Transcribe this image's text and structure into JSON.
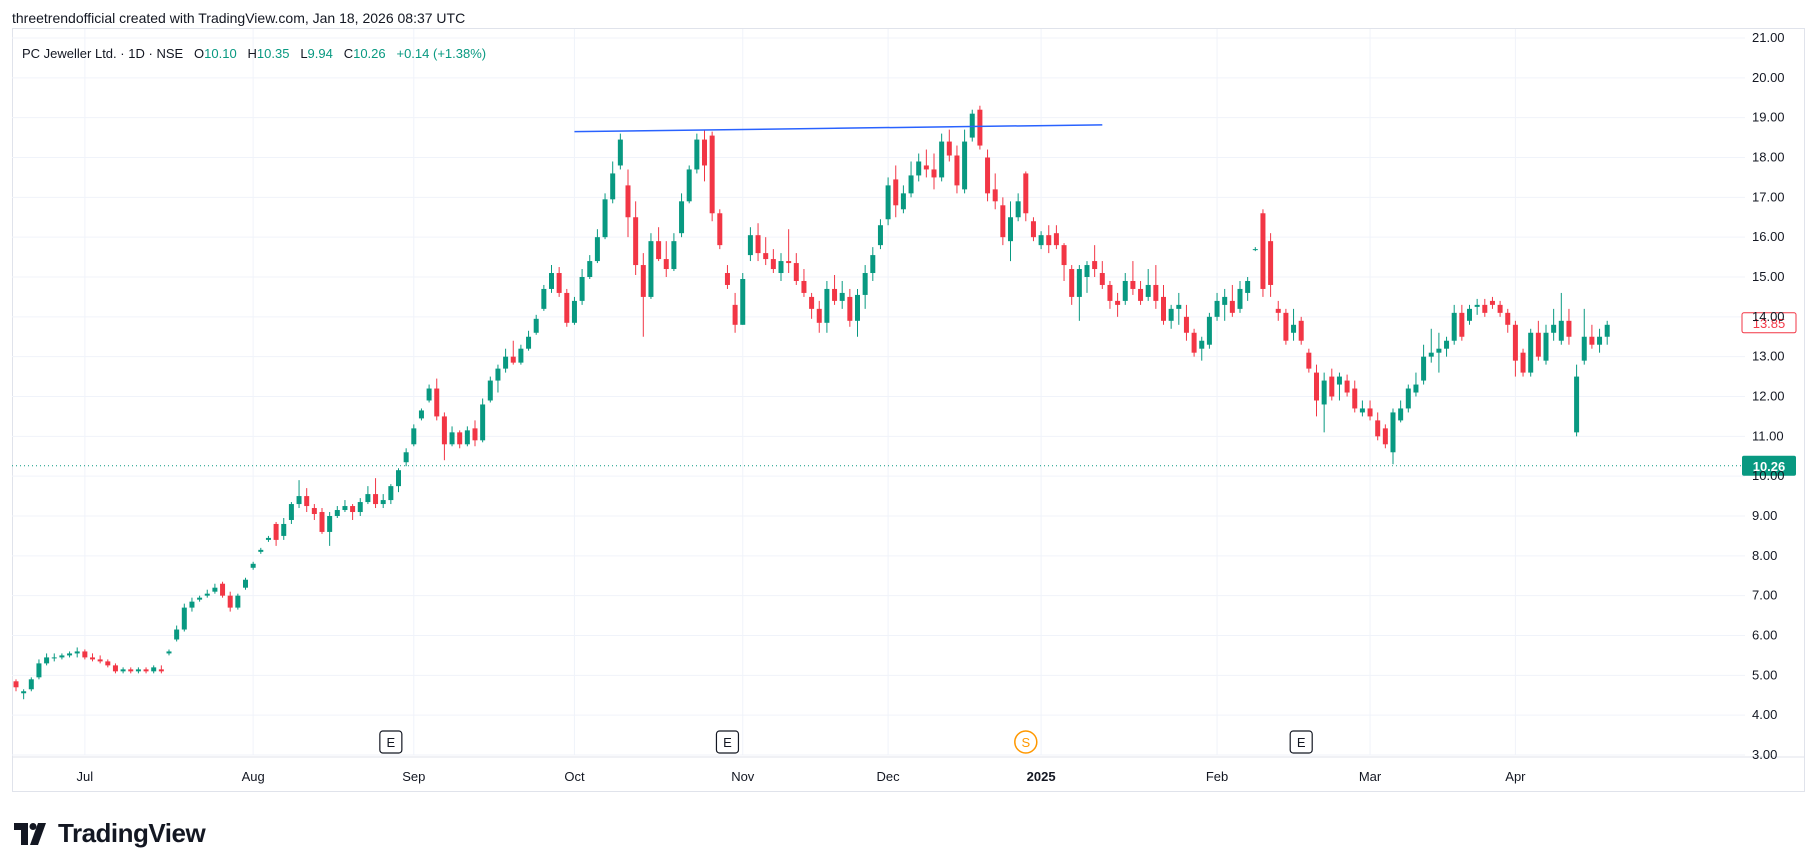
{
  "header": {
    "attribution": "threetrendofficial created with TradingView.com, Jan 18, 2026 08:37 UTC"
  },
  "legend": {
    "symbol": "PC Jeweller Ltd.",
    "interval": "1D",
    "exchange": "NSE",
    "open_label": "O",
    "open": "10.10",
    "high_label": "H",
    "high": "10.35",
    "low_label": "L",
    "low": "9.94",
    "close_label": "C",
    "close": "10.26",
    "change": "+0.14 (+1.38%)"
  },
  "footer": {
    "brand": "TradingView"
  },
  "colors": {
    "up": "#089981",
    "down": "#f23645",
    "trendline": "#2962ff",
    "event": "#131722",
    "split": "#ff9800"
  },
  "chart_data": {
    "type": "candlestick",
    "title": "PC Jeweller Ltd. · 1D · NSE",
    "xlabel": "",
    "ylabel": "",
    "ylim": [
      3,
      21
    ],
    "y_ticks": [
      "3.00",
      "4.00",
      "5.00",
      "6.00",
      "7.00",
      "8.00",
      "9.00",
      "10.00",
      "11.00",
      "12.00",
      "13.00",
      "14.00",
      "15.00",
      "16.00",
      "17.00",
      "18.00",
      "19.00",
      "20.00",
      "21.00"
    ],
    "x_ticks": [
      {
        "label": "Jul",
        "bold": false,
        "bar": 9
      },
      {
        "label": "Aug",
        "bold": false,
        "bar": 31
      },
      {
        "label": "Sep",
        "bold": false,
        "bar": 52
      },
      {
        "label": "Oct",
        "bold": false,
        "bar": 73
      },
      {
        "label": "Nov",
        "bold": false,
        "bar": 95
      },
      {
        "label": "Dec",
        "bold": false,
        "bar": 114
      },
      {
        "label": "2025",
        "bold": true,
        "bar": 134
      },
      {
        "label": "Feb",
        "bold": false,
        "bar": 157
      },
      {
        "label": "Mar",
        "bold": false,
        "bar": 177
      },
      {
        "label": "Apr",
        "bold": false,
        "bar": 196
      }
    ],
    "grid": true,
    "last_price": {
      "value": 10.26,
      "label": "10.26"
    },
    "marker_price": {
      "value": 13.85,
      "label": "13.85"
    },
    "trendline": {
      "from": {
        "bar": 73,
        "price": 18.65
      },
      "to": {
        "bar": 142,
        "price": 18.82
      }
    },
    "events": [
      {
        "type": "earnings",
        "label": "E",
        "bar": 49
      },
      {
        "type": "earnings",
        "label": "E",
        "bar": 93
      },
      {
        "type": "split",
        "label": "S",
        "bar": 132
      },
      {
        "type": "earnings",
        "label": "E",
        "bar": 168
      }
    ],
    "candles": [
      [
        4.85,
        4.9,
        4.6,
        4.7
      ],
      [
        4.55,
        4.65,
        4.4,
        4.6
      ],
      [
        4.65,
        4.95,
        4.6,
        4.9
      ],
      [
        4.95,
        5.4,
        4.9,
        5.3
      ],
      [
        5.3,
        5.55,
        5.25,
        5.45
      ],
      [
        5.45,
        5.55,
        5.35,
        5.45
      ],
      [
        5.45,
        5.55,
        5.4,
        5.5
      ],
      [
        5.5,
        5.6,
        5.45,
        5.55
      ],
      [
        5.55,
        5.7,
        5.45,
        5.6
      ],
      [
        5.6,
        5.65,
        5.4,
        5.45
      ],
      [
        5.45,
        5.55,
        5.35,
        5.4
      ],
      [
        5.4,
        5.5,
        5.3,
        5.35
      ],
      [
        5.35,
        5.4,
        5.2,
        5.25
      ],
      [
        5.25,
        5.3,
        5.05,
        5.1
      ],
      [
        5.1,
        5.2,
        5.05,
        5.15
      ],
      [
        5.15,
        5.2,
        5.05,
        5.1
      ],
      [
        5.1,
        5.2,
        5.05,
        5.15
      ],
      [
        5.15,
        5.2,
        5.05,
        5.1
      ],
      [
        5.1,
        5.25,
        5.05,
        5.2
      ],
      [
        5.15,
        5.25,
        5.05,
        5.1
      ],
      [
        5.55,
        5.65,
        5.5,
        5.6
      ],
      [
        5.9,
        6.25,
        5.85,
        6.15
      ],
      [
        6.15,
        6.8,
        6.1,
        6.7
      ],
      [
        6.7,
        6.95,
        6.6,
        6.85
      ],
      [
        6.9,
        7.0,
        6.85,
        6.95
      ],
      [
        7.0,
        7.15,
        6.95,
        7.05
      ],
      [
        7.1,
        7.3,
        7.05,
        7.2
      ],
      [
        7.3,
        7.35,
        6.95,
        7.0
      ],
      [
        7.0,
        7.1,
        6.6,
        6.7
      ],
      [
        6.7,
        7.05,
        6.65,
        7.0
      ],
      [
        7.2,
        7.45,
        7.15,
        7.4
      ],
      [
        7.7,
        7.85,
        7.65,
        7.8
      ],
      [
        8.1,
        8.2,
        8.05,
        8.15
      ],
      [
        8.4,
        8.5,
        8.35,
        8.45
      ],
      [
        8.8,
        8.85,
        8.25,
        8.4
      ],
      [
        8.5,
        8.95,
        8.4,
        8.8
      ],
      [
        8.9,
        9.35,
        8.8,
        9.3
      ],
      [
        9.3,
        9.9,
        9.2,
        9.5
      ],
      [
        9.5,
        9.7,
        9.1,
        9.25
      ],
      [
        9.2,
        9.3,
        8.9,
        9.05
      ],
      [
        9.1,
        9.2,
        8.55,
        8.6
      ],
      [
        8.6,
        9.1,
        8.25,
        9.0
      ],
      [
        9.0,
        9.25,
        8.95,
        9.15
      ],
      [
        9.15,
        9.4,
        9.1,
        9.25
      ],
      [
        9.25,
        9.3,
        8.9,
        9.1
      ],
      [
        9.1,
        9.45,
        9.0,
        9.35
      ],
      [
        9.35,
        9.75,
        9.3,
        9.55
      ],
      [
        9.55,
        9.95,
        9.2,
        9.3
      ],
      [
        9.3,
        9.55,
        9.2,
        9.4
      ],
      [
        9.4,
        9.8,
        9.3,
        9.75
      ],
      [
        9.75,
        10.2,
        9.6,
        10.15
      ],
      [
        10.35,
        10.7,
        10.25,
        10.6
      ],
      [
        10.8,
        11.3,
        10.75,
        11.2
      ],
      [
        11.45,
        11.7,
        11.4,
        11.65
      ],
      [
        11.9,
        12.3,
        11.85,
        12.2
      ],
      [
        12.2,
        12.45,
        11.4,
        11.5
      ],
      [
        11.5,
        11.6,
        10.4,
        10.8
      ],
      [
        10.8,
        11.25,
        10.75,
        11.1
      ],
      [
        11.1,
        11.15,
        10.7,
        10.8
      ],
      [
        10.8,
        11.25,
        10.75,
        11.15
      ],
      [
        11.2,
        11.4,
        10.75,
        10.9
      ],
      [
        10.9,
        11.95,
        10.85,
        11.8
      ],
      [
        11.9,
        12.5,
        11.85,
        12.4
      ],
      [
        12.4,
        12.8,
        12.1,
        12.7
      ],
      [
        12.7,
        13.2,
        12.6,
        13.0
      ],
      [
        13.0,
        13.4,
        12.8,
        12.85
      ],
      [
        12.85,
        13.3,
        12.8,
        13.2
      ],
      [
        13.2,
        13.65,
        13.15,
        13.5
      ],
      [
        13.6,
        14.05,
        13.55,
        13.95
      ],
      [
        14.2,
        14.8,
        14.15,
        14.7
      ],
      [
        14.7,
        15.3,
        14.6,
        15.1
      ],
      [
        15.1,
        15.25,
        14.5,
        14.6
      ],
      [
        14.6,
        14.7,
        13.75,
        13.85
      ],
      [
        13.85,
        14.5,
        13.8,
        14.4
      ],
      [
        14.4,
        15.2,
        14.3,
        15.0
      ],
      [
        15.0,
        15.55,
        14.95,
        15.4
      ],
      [
        15.4,
        16.2,
        15.35,
        16.0
      ],
      [
        16.0,
        17.1,
        15.95,
        16.95
      ],
      [
        16.95,
        17.9,
        16.85,
        17.6
      ],
      [
        17.8,
        18.6,
        17.7,
        18.45
      ],
      [
        17.3,
        17.7,
        16.0,
        16.5
      ],
      [
        16.5,
        16.9,
        15.05,
        15.3
      ],
      [
        15.3,
        15.6,
        13.5,
        14.5
      ],
      [
        14.5,
        16.1,
        14.45,
        15.9
      ],
      [
        15.9,
        16.25,
        15.4,
        15.45
      ],
      [
        15.45,
        15.9,
        15.0,
        15.2
      ],
      [
        15.2,
        16.1,
        15.15,
        15.9
      ],
      [
        16.1,
        17.1,
        16.0,
        16.9
      ],
      [
        16.9,
        17.8,
        16.85,
        17.7
      ],
      [
        17.7,
        18.6,
        17.6,
        18.45
      ],
      [
        18.45,
        18.7,
        17.4,
        17.8
      ],
      [
        18.55,
        18.65,
        16.4,
        16.6
      ],
      [
        16.6,
        16.7,
        15.7,
        15.8
      ],
      [
        15.1,
        15.3,
        14.7,
        14.8
      ],
      [
        14.3,
        14.6,
        13.6,
        13.8
      ],
      [
        13.8,
        15.1,
        13.8,
        14.95
      ],
      [
        15.55,
        16.25,
        15.4,
        16.05
      ],
      [
        16.05,
        16.35,
        15.4,
        15.6
      ],
      [
        15.6,
        16.0,
        15.3,
        15.45
      ],
      [
        15.45,
        15.7,
        15.1,
        15.2
      ],
      [
        15.1,
        15.6,
        14.9,
        15.4
      ],
      [
        15.4,
        16.2,
        15.1,
        15.35
      ],
      [
        15.35,
        15.6,
        14.8,
        14.9
      ],
      [
        14.9,
        15.2,
        14.5,
        14.6
      ],
      [
        14.5,
        14.6,
        13.95,
        14.2
      ],
      [
        14.2,
        14.4,
        13.6,
        13.85
      ],
      [
        13.85,
        14.9,
        13.6,
        14.7
      ],
      [
        14.7,
        15.05,
        14.3,
        14.4
      ],
      [
        14.4,
        14.9,
        14.2,
        14.6
      ],
      [
        14.5,
        14.7,
        13.75,
        13.9
      ],
      [
        13.9,
        14.7,
        13.5,
        14.55
      ],
      [
        14.55,
        15.3,
        14.2,
        15.1
      ],
      [
        15.1,
        15.75,
        14.9,
        15.55
      ],
      [
        15.8,
        16.45,
        15.7,
        16.3
      ],
      [
        16.45,
        17.5,
        16.3,
        17.3
      ],
      [
        17.45,
        17.8,
        16.5,
        16.8
      ],
      [
        16.7,
        17.3,
        16.6,
        17.1
      ],
      [
        17.1,
        17.9,
        17.0,
        17.55
      ],
      [
        17.55,
        18.1,
        17.4,
        17.9
      ],
      [
        17.8,
        18.2,
        17.5,
        17.7
      ],
      [
        17.7,
        18.1,
        17.2,
        17.5
      ],
      [
        17.5,
        18.6,
        17.4,
        18.4
      ],
      [
        18.4,
        18.7,
        17.9,
        18.05
      ],
      [
        18.05,
        18.3,
        17.1,
        17.3
      ],
      [
        17.2,
        18.7,
        17.1,
        18.4
      ],
      [
        18.5,
        19.2,
        18.4,
        19.1
      ],
      [
        19.2,
        19.3,
        18.2,
        18.3
      ],
      [
        18.0,
        18.2,
        16.9,
        17.1
      ],
      [
        17.2,
        17.6,
        16.7,
        16.9
      ],
      [
        16.8,
        17.0,
        15.8,
        16.0
      ],
      [
        15.9,
        16.9,
        15.4,
        16.5
      ],
      [
        16.5,
        17.1,
        16.4,
        16.9
      ],
      [
        17.6,
        17.65,
        16.4,
        16.6
      ],
      [
        16.4,
        16.5,
        15.9,
        16.0
      ],
      [
        15.8,
        16.15,
        15.7,
        16.05
      ],
      [
        16.05,
        16.3,
        15.6,
        15.8
      ],
      [
        16.1,
        16.3,
        15.7,
        15.8
      ],
      [
        15.8,
        15.85,
        14.9,
        15.3
      ],
      [
        15.2,
        15.3,
        14.3,
        14.5
      ],
      [
        14.5,
        15.3,
        13.9,
        15.2
      ],
      [
        15.0,
        15.4,
        14.6,
        15.3
      ],
      [
        15.4,
        15.8,
        15.0,
        15.2
      ],
      [
        15.1,
        15.4,
        14.7,
        14.8
      ],
      [
        14.8,
        14.9,
        14.2,
        14.4
      ],
      [
        14.4,
        14.6,
        14.0,
        14.3
      ],
      [
        14.4,
        15.1,
        14.3,
        14.9
      ],
      [
        14.9,
        15.4,
        14.55,
        14.7
      ],
      [
        14.7,
        14.9,
        14.3,
        14.4
      ],
      [
        14.5,
        15.2,
        14.4,
        14.8
      ],
      [
        14.8,
        15.3,
        14.2,
        14.4
      ],
      [
        14.5,
        14.8,
        13.8,
        13.9
      ],
      [
        13.9,
        14.3,
        13.7,
        14.2
      ],
      [
        14.2,
        14.6,
        13.8,
        14.3
      ],
      [
        14.0,
        14.3,
        13.4,
        13.6
      ],
      [
        13.6,
        13.7,
        13.0,
        13.1
      ],
      [
        13.2,
        13.5,
        12.9,
        13.4
      ],
      [
        13.3,
        14.1,
        13.2,
        14.0
      ],
      [
        14.0,
        14.6,
        13.9,
        14.4
      ],
      [
        14.3,
        14.7,
        13.9,
        14.5
      ],
      [
        14.4,
        14.8,
        14.0,
        14.1
      ],
      [
        14.2,
        14.9,
        14.1,
        14.7
      ],
      [
        14.6,
        15.0,
        14.4,
        14.9
      ],
      [
        15.7,
        15.75,
        15.65,
        15.7
      ],
      [
        16.6,
        16.7,
        14.5,
        14.7
      ],
      [
        15.9,
        16.1,
        14.5,
        14.8
      ],
      [
        14.2,
        14.4,
        13.9,
        14.1
      ],
      [
        14.1,
        14.2,
        13.3,
        13.4
      ],
      [
        13.6,
        14.2,
        13.4,
        13.8
      ],
      [
        13.9,
        14.0,
        13.3,
        13.4
      ],
      [
        13.1,
        13.2,
        12.6,
        12.7
      ],
      [
        12.6,
        12.8,
        11.5,
        11.9
      ],
      [
        11.8,
        12.6,
        11.1,
        12.4
      ],
      [
        12.5,
        12.7,
        11.9,
        12.0
      ],
      [
        12.3,
        12.6,
        11.9,
        12.5
      ],
      [
        12.4,
        12.55,
        12.0,
        12.1
      ],
      [
        12.2,
        12.4,
        11.6,
        11.7
      ],
      [
        11.6,
        11.9,
        11.5,
        11.7
      ],
      [
        11.7,
        11.9,
        11.4,
        11.5
      ],
      [
        11.4,
        11.6,
        10.9,
        11.0
      ],
      [
        11.2,
        11.3,
        10.7,
        10.8
      ],
      [
        10.6,
        11.7,
        10.3,
        11.6
      ],
      [
        11.4,
        11.9,
        11.35,
        11.7
      ],
      [
        11.7,
        12.3,
        11.6,
        12.2
      ],
      [
        12.1,
        12.6,
        12.0,
        12.3
      ],
      [
        12.4,
        13.3,
        12.3,
        13.0
      ],
      [
        13.0,
        13.7,
        12.85,
        13.1
      ],
      [
        13.1,
        13.6,
        12.6,
        13.2
      ],
      [
        13.2,
        13.5,
        13.0,
        13.4
      ],
      [
        13.4,
        14.3,
        13.3,
        14.1
      ],
      [
        14.1,
        14.3,
        13.4,
        13.5
      ],
      [
        13.9,
        14.3,
        13.8,
        14.2
      ],
      [
        14.25,
        14.45,
        14.05,
        14.3
      ],
      [
        14.3,
        14.45,
        14.0,
        14.1
      ],
      [
        14.4,
        14.5,
        14.2,
        14.3
      ],
      [
        14.3,
        14.4,
        14.0,
        14.1
      ],
      [
        14.1,
        14.2,
        13.6,
        13.8
      ],
      [
        13.8,
        13.9,
        12.5,
        12.9
      ],
      [
        13.1,
        13.2,
        12.5,
        12.6
      ],
      [
        12.6,
        13.7,
        12.5,
        13.6
      ],
      [
        13.6,
        13.9,
        12.9,
        13.0
      ],
      [
        12.9,
        13.8,
        12.8,
        13.6
      ],
      [
        13.6,
        14.2,
        13.4,
        13.8
      ],
      [
        13.4,
        14.6,
        13.3,
        13.9
      ],
      [
        13.9,
        14.2,
        13.3,
        13.5
      ],
      [
        11.1,
        12.8,
        11.0,
        12.5
      ],
      [
        12.9,
        14.2,
        12.8,
        13.5
      ],
      [
        13.5,
        13.8,
        13.2,
        13.3
      ],
      [
        13.3,
        13.7,
        13.1,
        13.5
      ],
      [
        13.5,
        13.9,
        13.3,
        13.8
      ]
    ]
  }
}
